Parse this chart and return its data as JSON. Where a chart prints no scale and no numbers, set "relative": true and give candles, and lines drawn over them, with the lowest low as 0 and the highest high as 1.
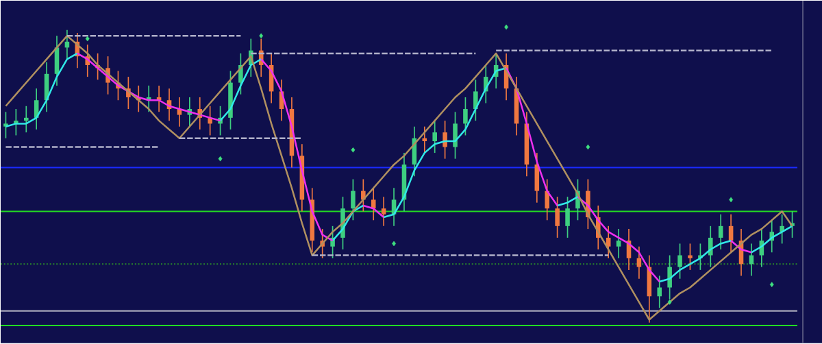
{
  "chart_data": {
    "type": "candlestick",
    "relative": true,
    "categories": [
      null,
      null,
      null,
      null,
      null,
      null,
      null,
      null,
      null,
      null,
      null,
      null,
      null,
      null,
      null,
      null,
      null,
      null,
      null,
      null,
      null,
      null,
      null,
      null,
      null,
      null,
      null,
      null,
      null,
      null,
      null,
      null,
      null,
      null,
      null,
      null,
      null,
      null,
      null,
      null,
      null,
      null,
      null,
      null,
      null,
      null,
      null,
      null,
      null,
      null,
      null,
      null,
      null,
      null,
      null,
      null,
      null,
      null,
      null,
      null,
      null,
      null,
      null,
      null,
      null,
      null,
      null,
      null,
      null,
      null,
      null,
      null,
      null,
      null,
      null,
      null,
      null,
      null
    ],
    "ohlc": [
      [
        0.67,
        0.72,
        0.63,
        0.68
      ],
      [
        0.68,
        0.73,
        0.64,
        0.69
      ],
      [
        0.69,
        0.74,
        0.65,
        0.7
      ],
      [
        0.7,
        0.8,
        0.66,
        0.76
      ],
      [
        0.76,
        0.89,
        0.72,
        0.85
      ],
      [
        0.85,
        0.98,
        0.81,
        0.94
      ],
      [
        0.94,
        1.0,
        0.9,
        0.96
      ],
      [
        0.96,
        0.99,
        0.87,
        0.91
      ],
      [
        0.91,
        0.95,
        0.84,
        0.88
      ],
      [
        0.88,
        0.92,
        0.83,
        0.87
      ],
      [
        0.87,
        0.91,
        0.78,
        0.82
      ],
      [
        0.82,
        0.86,
        0.76,
        0.8
      ],
      [
        0.8,
        0.84,
        0.73,
        0.77
      ],
      [
        0.77,
        0.81,
        0.72,
        0.76
      ],
      [
        0.76,
        0.81,
        0.72,
        0.77
      ],
      [
        0.77,
        0.81,
        0.72,
        0.76
      ],
      [
        0.76,
        0.8,
        0.69,
        0.73
      ],
      [
        0.73,
        0.77,
        0.67,
        0.71
      ],
      [
        0.71,
        0.77,
        0.67,
        0.73
      ],
      [
        0.73,
        0.77,
        0.66,
        0.7
      ],
      [
        0.7,
        0.74,
        0.64,
        0.68
      ],
      [
        0.68,
        0.74,
        0.64,
        0.7
      ],
      [
        0.7,
        0.86,
        0.66,
        0.82
      ],
      [
        0.82,
        0.92,
        0.78,
        0.88
      ],
      [
        0.88,
        0.97,
        0.84,
        0.93
      ],
      [
        0.93,
        0.97,
        0.84,
        0.88
      ],
      [
        0.88,
        0.92,
        0.75,
        0.79
      ],
      [
        0.79,
        0.83,
        0.69,
        0.73
      ],
      [
        0.73,
        0.77,
        0.53,
        0.57
      ],
      [
        0.57,
        0.61,
        0.38,
        0.42
      ],
      [
        0.42,
        0.46,
        0.24,
        0.28
      ],
      [
        0.28,
        0.32,
        0.22,
        0.26
      ],
      [
        0.26,
        0.33,
        0.22,
        0.29
      ],
      [
        0.29,
        0.43,
        0.25,
        0.39
      ],
      [
        0.39,
        0.49,
        0.35,
        0.45
      ],
      [
        0.45,
        0.49,
        0.38,
        0.42
      ],
      [
        0.42,
        0.46,
        0.35,
        0.39
      ],
      [
        0.39,
        0.43,
        0.33,
        0.37
      ],
      [
        0.37,
        0.46,
        0.33,
        0.42
      ],
      [
        0.42,
        0.58,
        0.38,
        0.54
      ],
      [
        0.54,
        0.67,
        0.5,
        0.63
      ],
      [
        0.63,
        0.67,
        0.58,
        0.62
      ],
      [
        0.62,
        0.69,
        0.58,
        0.65
      ],
      [
        0.65,
        0.69,
        0.56,
        0.6
      ],
      [
        0.6,
        0.72,
        0.56,
        0.68
      ],
      [
        0.68,
        0.77,
        0.64,
        0.73
      ],
      [
        0.73,
        0.83,
        0.69,
        0.79
      ],
      [
        0.79,
        0.88,
        0.75,
        0.84
      ],
      [
        0.84,
        0.92,
        0.8,
        0.88
      ],
      [
        0.88,
        0.92,
        0.76,
        0.8
      ],
      [
        0.8,
        0.84,
        0.64,
        0.68
      ],
      [
        0.68,
        0.72,
        0.5,
        0.54
      ],
      [
        0.54,
        0.58,
        0.41,
        0.45
      ],
      [
        0.45,
        0.49,
        0.35,
        0.39
      ],
      [
        0.39,
        0.43,
        0.29,
        0.33
      ],
      [
        0.33,
        0.43,
        0.29,
        0.39
      ],
      [
        0.39,
        0.49,
        0.35,
        0.45
      ],
      [
        0.45,
        0.49,
        0.32,
        0.36
      ],
      [
        0.36,
        0.4,
        0.25,
        0.29
      ],
      [
        0.29,
        0.33,
        0.22,
        0.26
      ],
      [
        0.26,
        0.32,
        0.22,
        0.28
      ],
      [
        0.28,
        0.32,
        0.18,
        0.22
      ],
      [
        0.22,
        0.26,
        0.15,
        0.19
      ],
      [
        0.19,
        0.23,
        0.0,
        0.09
      ],
      [
        0.09,
        0.16,
        0.05,
        0.12
      ],
      [
        0.12,
        0.23,
        0.08,
        0.19
      ],
      [
        0.19,
        0.27,
        0.15,
        0.23
      ],
      [
        0.23,
        0.27,
        0.18,
        0.22
      ],
      [
        0.22,
        0.27,
        0.18,
        0.23
      ],
      [
        0.23,
        0.33,
        0.19,
        0.29
      ],
      [
        0.29,
        0.37,
        0.25,
        0.33
      ],
      [
        0.33,
        0.37,
        0.24,
        0.28
      ],
      [
        0.28,
        0.32,
        0.16,
        0.2
      ],
      [
        0.2,
        0.27,
        0.16,
        0.23
      ],
      [
        0.23,
        0.32,
        0.19,
        0.28
      ],
      [
        0.28,
        0.35,
        0.24,
        0.31
      ],
      [
        0.31,
        0.37,
        0.27,
        0.33
      ],
      [
        0.33,
        0.38,
        0.29,
        0.34
      ]
    ],
    "colors": [
      "#3ecf80",
      "#3ecf80",
      "#3ecf80",
      "#3ecf80",
      "#3ecf80",
      "#3ecf80",
      "#3ecf80",
      "#f07840",
      "#f07840",
      "#f07840",
      "#f07840",
      "#f07840",
      "#f07840",
      "#f07840",
      "#3ecf80",
      "#f07840",
      "#f07840",
      "#f07840",
      "#3ecf80",
      "#f07840",
      "#f07840",
      "#3ecf80",
      "#3ecf80",
      "#3ecf80",
      "#3ecf80",
      "#f07840",
      "#f07840",
      "#f07840",
      "#f07840",
      "#f07840",
      "#f07840",
      "#f07840",
      "#3ecf80",
      "#3ecf80",
      "#3ecf80",
      "#f07840",
      "#f07840",
      "#f07840",
      "#3ecf80",
      "#3ecf80",
      "#3ecf80",
      "#f07840",
      "#3ecf80",
      "#f07840",
      "#3ecf80",
      "#3ecf80",
      "#3ecf80",
      "#3ecf80",
      "#3ecf80",
      "#f07840",
      "#f07840",
      "#f07840",
      "#f07840",
      "#f07840",
      "#f07840",
      "#3ecf80",
      "#3ecf80",
      "#f07840",
      "#f07840",
      "#f07840",
      "#3ecf80",
      "#f07840",
      "#f07840",
      "#f07840",
      "#3ecf80",
      "#3ecf80",
      "#3ecf80",
      "#f07840",
      "#3ecf80",
      "#3ecf80",
      "#3ecf80",
      "#f07840",
      "#f07840",
      "#3ecf80",
      "#3ecf80",
      "#3ecf80",
      "#3ecf80",
      "#3ecf80"
    ],
    "series": [
      {
        "type": "line",
        "color": "#30e8e8",
        "values": [
          0.67,
          0.68,
          0.68,
          0.7,
          0.76,
          0.84,
          0.9,
          0.92,
          null,
          null,
          null,
          null,
          null,
          null,
          null,
          null,
          null,
          null,
          null,
          null,
          null,
          0.69,
          0.73,
          0.81,
          0.88,
          0.9,
          null,
          null,
          null,
          null,
          null,
          null,
          0.28,
          0.32,
          0.38,
          0.4,
          null,
          0.36,
          0.37,
          0.43,
          0.52,
          0.58,
          0.61,
          0.62,
          0.62,
          0.66,
          0.73,
          0.8,
          0.86,
          0.87,
          null,
          null,
          null,
          null,
          0.4,
          0.41,
          0.43,
          null,
          null,
          null,
          null,
          null,
          null,
          null,
          0.14,
          0.15,
          0.18,
          0.2,
          0.22,
          0.25,
          0.27,
          0.28,
          null,
          0.24,
          0.26,
          0.29,
          0.31,
          0.33
        ]
      },
      {
        "type": "line",
        "color": "#ee30ee",
        "values": [
          null,
          null,
          null,
          null,
          null,
          null,
          null,
          0.92,
          0.9,
          0.87,
          0.84,
          0.81,
          0.79,
          0.77,
          0.76,
          0.76,
          0.74,
          0.73,
          0.72,
          0.71,
          0.7,
          0.69,
          null,
          null,
          null,
          0.9,
          0.86,
          0.79,
          0.67,
          0.52,
          0.38,
          0.3,
          0.28,
          null,
          null,
          0.4,
          0.39,
          0.36,
          null,
          null,
          null,
          null,
          null,
          null,
          null,
          null,
          null,
          null,
          null,
          0.87,
          0.8,
          0.68,
          0.55,
          0.45,
          0.4,
          null,
          0.43,
          0.4,
          0.35,
          0.31,
          0.29,
          0.27,
          0.24,
          0.18,
          0.14,
          null,
          null,
          null,
          null,
          null,
          null,
          0.28,
          0.25,
          0.24,
          null,
          null,
          null,
          null
        ]
      },
      {
        "type": "line",
        "color": "#b09060",
        "values": [
          0.74,
          0.78,
          0.82,
          0.86,
          0.9,
          0.94,
          0.98,
          0.95,
          0.92,
          0.88,
          0.85,
          0.82,
          0.79,
          0.76,
          0.73,
          0.69,
          0.66,
          0.63,
          0.67,
          0.71,
          0.75,
          0.79,
          0.83,
          0.87,
          0.91,
          0.8,
          0.68,
          0.57,
          0.46,
          0.34,
          0.23,
          0.27,
          0.31,
          0.34,
          0.38,
          0.42,
          0.46,
          0.5,
          0.54,
          0.57,
          0.61,
          0.65,
          0.69,
          0.73,
          0.77,
          0.8,
          0.84,
          0.88,
          0.92,
          0.86,
          0.8,
          0.74,
          0.68,
          0.62,
          0.56,
          0.5,
          0.44,
          0.37,
          0.31,
          0.25,
          0.19,
          0.13,
          0.07,
          0.01,
          0.04,
          0.07,
          0.1,
          0.12,
          0.15,
          0.18,
          0.21,
          0.24,
          0.27,
          0.3,
          0.32,
          0.35,
          0.38,
          0.33
        ]
      },
      {
        "type": "line",
        "color": "#b0b0c8",
        "line_style": "dashed",
        "values": [
          null,
          null,
          null,
          null,
          null,
          null,
          0.98,
          0.98,
          0.98,
          0.98,
          0.98,
          0.98,
          0.98,
          0.98,
          0.98,
          0.98,
          0.98,
          0.98,
          0.98,
          0.98,
          0.98,
          0.98,
          0.98,
          0.98,
          null,
          null,
          null,
          null,
          null,
          null,
          null,
          null,
          null,
          null,
          null,
          null,
          null,
          null,
          null,
          null,
          null,
          null,
          null,
          null,
          null,
          null,
          null,
          null,
          null,
          null,
          null,
          null,
          null,
          null,
          null,
          null,
          null,
          null,
          null,
          null,
          null,
          null,
          null,
          null,
          null,
          null,
          null,
          null,
          null,
          null,
          null,
          null,
          null,
          null,
          null,
          null,
          null,
          null
        ]
      },
      {
        "type": "line",
        "color": "#b0b0c8",
        "line_style": "dashed",
        "values": [
          0.6,
          0.6,
          0.6,
          0.6,
          0.6,
          0.6,
          0.6,
          0.6,
          0.6,
          0.6,
          0.6,
          0.6,
          0.6,
          0.6,
          0.6,
          0.6,
          null,
          null,
          null,
          null,
          null,
          null,
          null,
          null,
          null,
          null,
          null,
          null,
          null,
          null,
          null,
          null,
          null,
          null,
          null,
          null,
          null,
          null,
          null,
          null,
          null,
          null,
          null,
          null,
          null,
          null,
          null,
          null,
          null,
          null,
          null,
          null,
          null,
          null,
          null,
          null,
          null,
          null,
          null,
          null,
          null,
          null,
          null,
          null,
          null,
          null,
          null,
          null,
          null,
          null,
          null,
          null,
          null,
          null,
          null,
          null,
          null,
          null
        ]
      },
      {
        "type": "line",
        "color": "#b0b0c8",
        "line_style": "dashed",
        "values": [
          null,
          null,
          null,
          null,
          null,
          null,
          null,
          null,
          null,
          null,
          null,
          null,
          null,
          null,
          null,
          null,
          null,
          0.63,
          0.63,
          0.63,
          0.63,
          0.63,
          0.63,
          0.63,
          0.63,
          0.63,
          0.63,
          0.63,
          0.63,
          0.63,
          null,
          null,
          null,
          null,
          null,
          null,
          null,
          null,
          null,
          null,
          null,
          null,
          null,
          null,
          null,
          null,
          null,
          null,
          null,
          null,
          null,
          null,
          null,
          null,
          null,
          null,
          null,
          null,
          null,
          null,
          null,
          null,
          null,
          null,
          null,
          null,
          null,
          null,
          null,
          null,
          null,
          null,
          null,
          null,
          null,
          null,
          null,
          null
        ]
      },
      {
        "type": "line",
        "color": "#b0b0c8",
        "line_style": "dashed",
        "values": [
          null,
          null,
          null,
          null,
          null,
          null,
          null,
          null,
          null,
          null,
          null,
          null,
          null,
          null,
          null,
          null,
          null,
          null,
          null,
          null,
          null,
          null,
          null,
          null,
          0.92,
          0.92,
          0.92,
          0.92,
          0.92,
          0.92,
          0.92,
          0.92,
          0.92,
          0.92,
          0.92,
          0.92,
          0.92,
          0.92,
          0.92,
          0.92,
          0.92,
          0.92,
          0.92,
          0.92,
          0.92,
          0.92,
          0.92,
          null,
          null,
          null,
          null,
          null,
          null,
          null,
          null,
          null,
          null,
          null,
          null,
          null,
          null,
          null,
          null,
          null,
          null,
          null,
          null,
          null,
          null,
          null,
          null,
          null,
          null,
          null,
          null,
          null,
          null,
          null
        ]
      },
      {
        "type": "line",
        "color": "#b0b0c8",
        "line_style": "dashed",
        "values": [
          null,
          null,
          null,
          null,
          null,
          null,
          null,
          null,
          null,
          null,
          null,
          null,
          null,
          null,
          null,
          null,
          null,
          null,
          null,
          null,
          null,
          null,
          null,
          null,
          null,
          null,
          null,
          null,
          null,
          null,
          0.23,
          0.23,
          0.23,
          0.23,
          0.23,
          0.23,
          0.23,
          0.23,
          0.23,
          0.23,
          0.23,
          0.23,
          0.23,
          0.23,
          0.23,
          0.23,
          0.23,
          0.23,
          0.23,
          0.23,
          0.23,
          0.23,
          0.23,
          0.23,
          0.23,
          0.23,
          0.23,
          0.23,
          0.23,
          0.23,
          null,
          null,
          null,
          null,
          null,
          null,
          null,
          null,
          null,
          null,
          null,
          null,
          null,
          null,
          null,
          null,
          null,
          null
        ]
      },
      {
        "type": "line",
        "color": "#b0b0c8",
        "line_style": "dashed",
        "values": [
          null,
          null,
          null,
          null,
          null,
          null,
          null,
          null,
          null,
          null,
          null,
          null,
          null,
          null,
          null,
          null,
          null,
          null,
          null,
          null,
          null,
          null,
          null,
          null,
          null,
          null,
          null,
          null,
          null,
          null,
          null,
          null,
          null,
          null,
          null,
          null,
          null,
          null,
          null,
          null,
          null,
          null,
          null,
          null,
          null,
          null,
          null,
          null,
          0.93,
          0.93,
          0.93,
          0.93,
          0.93,
          0.93,
          0.93,
          0.93,
          0.93,
          0.93,
          0.93,
          0.93,
          0.93,
          0.93,
          0.93,
          0.93,
          0.93,
          0.93,
          0.93,
          0.93,
          0.93,
          0.93,
          0.93,
          0.93,
          0.93,
          0.93,
          0.93,
          0.93,
          null,
          null
        ]
      },
      {
        "type": "scatter",
        "color": "#3ee080",
        "marker": "diamond",
        "values": [
          null,
          null,
          null,
          null,
          null,
          null,
          null,
          null,
          0.97,
          null,
          null,
          null,
          null,
          null,
          null,
          null,
          null,
          null,
          null,
          null,
          null,
          0.56,
          null,
          null,
          null,
          0.98,
          null,
          null,
          null,
          null,
          null,
          null,
          null,
          null,
          0.59,
          null,
          null,
          null,
          0.27,
          null,
          null,
          null,
          null,
          null,
          null,
          null,
          null,
          null,
          null,
          1.01,
          null,
          null,
          null,
          null,
          null,
          null,
          null,
          0.6,
          null,
          null,
          null,
          null,
          null,
          null,
          null,
          0.07,
          null,
          null,
          null,
          null,
          null,
          0.42,
          null,
          null,
          null,
          0.13,
          null,
          null
        ]
      }
    ],
    "ref_lines": [
      {
        "axis": "y",
        "value": 0.53,
        "color": "#1a2aff"
      },
      {
        "axis": "y",
        "value": 0.38,
        "color": "#22dd22"
      },
      {
        "axis": "y",
        "value": 0.2,
        "color": "#2a8a2a",
        "line_style": "dotted"
      },
      {
        "axis": "y",
        "value": 0.04,
        "color": "#b0b0c0"
      },
      {
        "axis": "y",
        "value": -0.01,
        "color": "#22dd22"
      }
    ]
  }
}
